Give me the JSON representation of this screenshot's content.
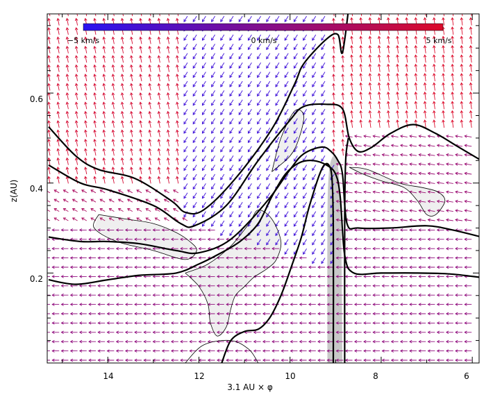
{
  "chart_data": {
    "type": "vector-field",
    "xlabel": "3.1 AU × φ",
    "ylabel": "z(AU)",
    "xlim": [
      15.3,
      5.8
    ],
    "ylim": [
      0.0,
      0.78
    ],
    "x_ticks": [
      14,
      12,
      10,
      8,
      6
    ],
    "y_ticks": [
      0.2,
      0.4,
      0.6
    ],
    "x_tick_labels": [
      "14",
      "12",
      "10",
      "8",
      "6"
    ],
    "y_tick_labels": [
      "0.2",
      "0.4",
      "0.6"
    ],
    "colorbar": {
      "min_label": "−5 km/s",
      "mid_label": "0 km/s",
      "max_label": "5 km/s",
      "range": [
        -5,
        5
      ],
      "colors": [
        "#2a12f0",
        "#dc0a2a"
      ]
    },
    "contours": [
      {
        "style": "thick",
        "points": [
          [
            15.3,
            0.525
          ],
          [
            14.7,
            0.46
          ],
          [
            14.2,
            0.43
          ],
          [
            13.4,
            0.41
          ],
          [
            12.6,
            0.36
          ],
          [
            12.3,
            0.335
          ],
          [
            11.9,
            0.34
          ],
          [
            11.2,
            0.41
          ],
          [
            10.4,
            0.52
          ],
          [
            9.9,
            0.62
          ],
          [
            9.7,
            0.665
          ],
          [
            9.2,
            0.72
          ],
          [
            8.95,
            0.73
          ],
          [
            8.85,
            0.69
          ],
          [
            8.7,
            0.8
          ]
        ]
      },
      {
        "style": "thick",
        "points": [
          [
            15.3,
            0.44
          ],
          [
            14.6,
            0.4
          ],
          [
            14.0,
            0.385
          ],
          [
            13.0,
            0.35
          ],
          [
            12.4,
            0.31
          ],
          [
            12.1,
            0.305
          ],
          [
            11.4,
            0.35
          ],
          [
            10.7,
            0.45
          ],
          [
            10.0,
            0.54
          ],
          [
            9.7,
            0.57
          ],
          [
            9.2,
            0.575
          ],
          [
            8.85,
            0.565
          ],
          [
            8.7,
            0.5
          ],
          [
            8.5,
            0.47
          ],
          [
            8.2,
            0.48
          ],
          [
            7.8,
            0.51
          ],
          [
            7.3,
            0.53
          ],
          [
            6.8,
            0.51
          ],
          [
            6.3,
            0.48
          ],
          [
            5.8,
            0.45
          ]
        ]
      },
      {
        "style": "thick",
        "points": [
          [
            15.3,
            0.28
          ],
          [
            14.6,
            0.27
          ],
          [
            14.0,
            0.27
          ],
          [
            13.3,
            0.265
          ],
          [
            12.5,
            0.25
          ],
          [
            12.0,
            0.245
          ],
          [
            11.3,
            0.275
          ],
          [
            10.5,
            0.36
          ],
          [
            10.0,
            0.43
          ],
          [
            9.7,
            0.465
          ],
          [
            9.3,
            0.48
          ],
          [
            9.1,
            0.47
          ],
          [
            8.95,
            0.45
          ],
          [
            8.85,
            0.42
          ],
          [
            8.75,
            0.31
          ],
          [
            8.5,
            0.3
          ],
          [
            7.8,
            0.3
          ],
          [
            7.0,
            0.305
          ],
          [
            6.4,
            0.295
          ],
          [
            5.8,
            0.28
          ]
        ]
      },
      {
        "style": "thick",
        "points": [
          [
            15.3,
            0.185
          ],
          [
            14.7,
            0.175
          ],
          [
            14.0,
            0.185
          ],
          [
            13.3,
            0.195
          ],
          [
            12.5,
            0.2
          ],
          [
            12.0,
            0.22
          ],
          [
            11.6,
            0.24
          ],
          [
            11.1,
            0.27
          ],
          [
            10.7,
            0.31
          ],
          [
            10.4,
            0.37
          ],
          [
            10.1,
            0.42
          ],
          [
            9.8,
            0.445
          ],
          [
            9.5,
            0.45
          ],
          [
            9.2,
            0.44
          ],
          [
            9.0,
            0.42
          ],
          [
            8.9,
            0.37
          ],
          [
            8.8,
            0.24
          ],
          [
            8.6,
            0.2
          ],
          [
            8.0,
            0.2
          ],
          [
            7.2,
            0.2
          ],
          [
            6.5,
            0.198
          ],
          [
            5.8,
            0.19
          ]
        ]
      },
      {
        "style": "thick",
        "points": [
          [
            11.5,
            0.0
          ],
          [
            11.3,
            0.05
          ],
          [
            11.0,
            0.07
          ],
          [
            10.7,
            0.075
          ],
          [
            10.45,
            0.1
          ],
          [
            10.2,
            0.15
          ],
          [
            9.95,
            0.22
          ],
          [
            9.75,
            0.28
          ],
          [
            9.6,
            0.34
          ],
          [
            9.45,
            0.39
          ],
          [
            9.35,
            0.42
          ],
          [
            9.25,
            0.44
          ],
          [
            9.15,
            0.44
          ],
          [
            9.08,
            0.41
          ],
          [
            9.05,
            0.3
          ],
          [
            9.05,
            0.0
          ]
        ]
      },
      {
        "style": "thick",
        "points": [
          [
            8.8,
            0.0
          ],
          [
            8.8,
            0.32
          ],
          [
            8.78,
            0.45
          ],
          [
            8.72,
            0.5
          ]
        ]
      },
      {
        "style": "thin",
        "points": [
          [
            14.2,
            0.33
          ],
          [
            13.6,
            0.32
          ],
          [
            13.0,
            0.31
          ],
          [
            12.5,
            0.29
          ],
          [
            12.2,
            0.27
          ],
          [
            12.05,
            0.25
          ],
          [
            12.3,
            0.23
          ],
          [
            13.0,
            0.25
          ],
          [
            13.8,
            0.27
          ],
          [
            14.3,
            0.3
          ],
          [
            14.2,
            0.33
          ]
        ]
      },
      {
        "style": "thin",
        "points": [
          [
            12.3,
            0.2
          ],
          [
            12.0,
            0.17
          ],
          [
            11.8,
            0.13
          ],
          [
            11.75,
            0.09
          ],
          [
            11.6,
            0.06
          ],
          [
            11.4,
            0.08
          ],
          [
            11.3,
            0.12
          ],
          [
            11.2,
            0.15
          ],
          [
            11.0,
            0.17
          ],
          [
            10.8,
            0.19
          ],
          [
            10.5,
            0.21
          ],
          [
            10.3,
            0.23
          ],
          [
            10.2,
            0.27
          ],
          [
            10.4,
            0.32
          ],
          [
            10.7,
            0.34
          ],
          [
            10.9,
            0.31
          ],
          [
            11.3,
            0.26
          ],
          [
            11.8,
            0.22
          ],
          [
            12.3,
            0.2
          ]
        ]
      },
      {
        "style": "thin",
        "points": [
          [
            12.3,
            0.0
          ],
          [
            11.9,
            0.04
          ],
          [
            11.3,
            0.05
          ],
          [
            10.9,
            0.03
          ],
          [
            10.7,
            0.0
          ]
        ]
      },
      {
        "style": "thin",
        "points": [
          [
            8.7,
            0.435
          ],
          [
            8.4,
            0.42
          ],
          [
            8.0,
            0.405
          ],
          [
            7.5,
            0.39
          ],
          [
            7.2,
            0.36
          ],
          [
            7.0,
            0.33
          ],
          [
            6.8,
            0.33
          ],
          [
            6.6,
            0.36
          ],
          [
            6.75,
            0.38
          ],
          [
            7.1,
            0.39
          ],
          [
            7.6,
            0.4
          ],
          [
            8.3,
            0.43
          ],
          [
            8.7,
            0.435
          ]
        ]
      },
      {
        "style": "thin",
        "points": [
          [
            10.4,
            0.425
          ],
          [
            10.0,
            0.46
          ],
          [
            9.8,
            0.5
          ],
          [
            9.7,
            0.55
          ],
          [
            9.9,
            0.56
          ],
          [
            10.2,
            0.5
          ],
          [
            10.4,
            0.425
          ]
        ]
      }
    ],
    "shaded_regions": [
      {
        "shade": "light",
        "points": [
          [
            14.2,
            0.33
          ],
          [
            13.6,
            0.32
          ],
          [
            13.0,
            0.31
          ],
          [
            12.5,
            0.29
          ],
          [
            12.2,
            0.27
          ],
          [
            12.05,
            0.25
          ],
          [
            12.3,
            0.23
          ],
          [
            13.0,
            0.25
          ],
          [
            13.8,
            0.27
          ],
          [
            14.3,
            0.3
          ]
        ]
      },
      {
        "shade": "light",
        "points": [
          [
            12.3,
            0.2
          ],
          [
            12.0,
            0.17
          ],
          [
            11.8,
            0.13
          ],
          [
            11.75,
            0.09
          ],
          [
            11.6,
            0.06
          ],
          [
            11.4,
            0.08
          ],
          [
            11.3,
            0.12
          ],
          [
            11.2,
            0.15
          ],
          [
            11.0,
            0.17
          ],
          [
            10.8,
            0.19
          ],
          [
            10.5,
            0.21
          ],
          [
            10.3,
            0.23
          ],
          [
            10.2,
            0.27
          ],
          [
            10.4,
            0.32
          ],
          [
            10.7,
            0.34
          ],
          [
            10.9,
            0.31
          ],
          [
            11.3,
            0.26
          ],
          [
            11.8,
            0.22
          ]
        ]
      },
      {
        "shade": "light",
        "points": [
          [
            8.7,
            0.435
          ],
          [
            8.4,
            0.42
          ],
          [
            8.0,
            0.405
          ],
          [
            7.5,
            0.39
          ],
          [
            7.2,
            0.36
          ],
          [
            7.0,
            0.33
          ],
          [
            6.8,
            0.33
          ],
          [
            6.6,
            0.36
          ],
          [
            6.75,
            0.38
          ],
          [
            7.1,
            0.39
          ],
          [
            7.6,
            0.4
          ],
          [
            8.3,
            0.43
          ]
        ]
      },
      {
        "shade": "light",
        "points": [
          [
            10.4,
            0.425
          ],
          [
            10.0,
            0.46
          ],
          [
            9.8,
            0.5
          ],
          [
            9.7,
            0.55
          ],
          [
            9.9,
            0.56
          ],
          [
            10.2,
            0.5
          ]
        ]
      },
      {
        "shade": "dark",
        "points": [
          [
            9.18,
            0.0
          ],
          [
            9.18,
            0.3
          ],
          [
            9.15,
            0.42
          ],
          [
            9.05,
            0.46
          ],
          [
            8.95,
            0.44
          ],
          [
            8.88,
            0.3
          ],
          [
            8.85,
            0.0
          ]
        ]
      }
    ]
  }
}
